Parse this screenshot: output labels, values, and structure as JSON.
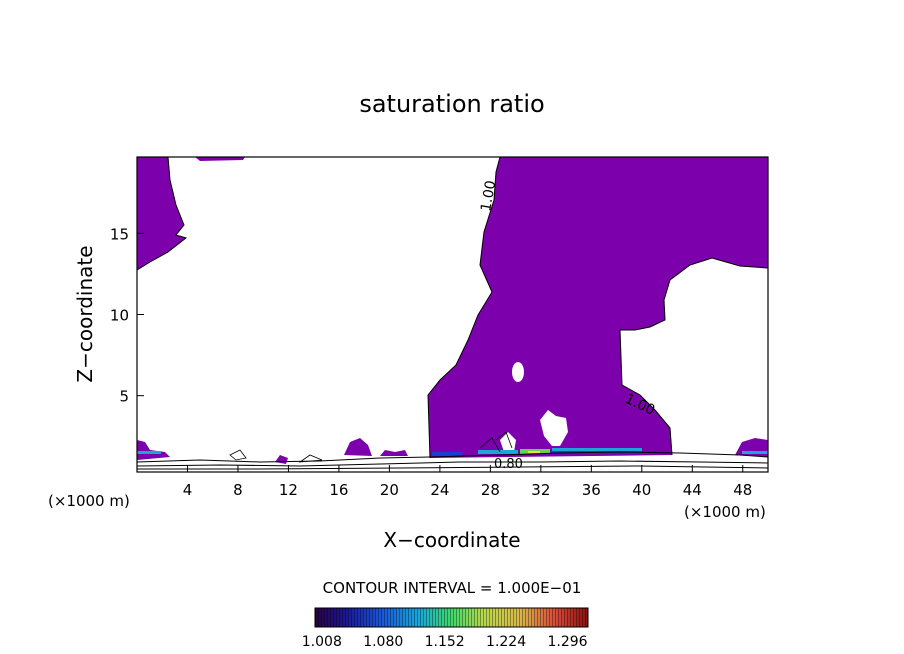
{
  "chart_data": {
    "type": "contour",
    "title": "saturation ratio",
    "xlabel": "X−coordinate",
    "ylabel": "Z−coordinate",
    "x_units": "(×1000 m)",
    "x_units_right": "(×1000 m)",
    "xlim": [
      0,
      50
    ],
    "ylim": [
      0.3,
      19.7
    ],
    "x_ticks": [
      4,
      8,
      12,
      16,
      20,
      24,
      28,
      32,
      36,
      40,
      44,
      48
    ],
    "y_ticks": [
      5,
      10,
      15
    ],
    "contour_labels": [
      "1.00",
      "1.00",
      "0.80"
    ],
    "contour_interval_label": "CONTOUR INTERVAL = 1.000E−01",
    "colorbar": {
      "tick_labels": [
        "1.008",
        "1.080",
        "1.152",
        "1.224",
        "1.296"
      ],
      "range": [
        1.0,
        1.32
      ]
    },
    "fill_color": "#7d00ad"
  }
}
